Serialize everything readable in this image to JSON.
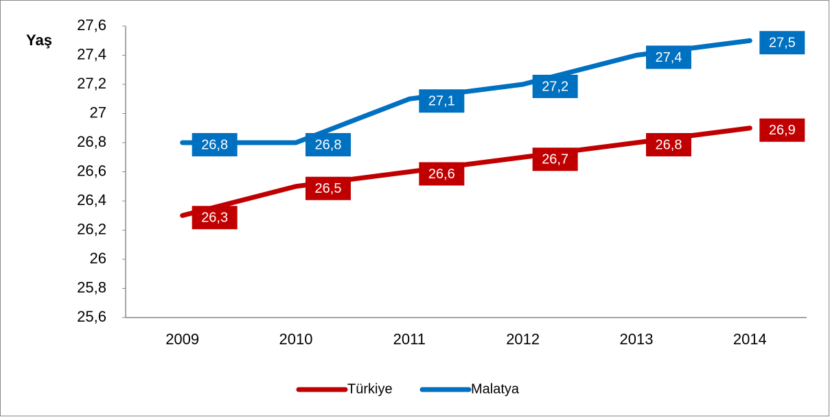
{
  "chart_data": {
    "type": "line",
    "y_label": "Yaş",
    "categories": [
      "2009",
      "2010",
      "2011",
      "2012",
      "2013",
      "2014"
    ],
    "series": [
      {
        "name": "Türkiye",
        "color": "#c00000",
        "values": [
          26.3,
          26.5,
          26.6,
          26.7,
          26.8,
          26.9
        ],
        "value_labels": [
          "26,3",
          "26,5",
          "26,6",
          "26,7",
          "26,8",
          "26,9"
        ]
      },
      {
        "name": "Malatya",
        "color": "#0070c0",
        "values": [
          26.8,
          26.8,
          27.1,
          27.2,
          27.4,
          27.5
        ],
        "value_labels": [
          "26,8",
          "26,8",
          "27,1",
          "27,2",
          "27,4",
          "27,5"
        ]
      }
    ],
    "ylim": [
      25.6,
      27.6
    ],
    "yticks": [
      {
        "value": 25.6,
        "label": "25,6"
      },
      {
        "value": 25.8,
        "label": "25,8"
      },
      26,
      {
        "value": 26.2,
        "label": "26,2"
      },
      {
        "value": 26.4,
        "label": "26,4"
      },
      {
        "value": 26.6,
        "label": "26,6"
      },
      {
        "value": 26.8,
        "label": "26,8"
      },
      27,
      {
        "value": 27.2,
        "label": "27,2"
      },
      {
        "value": 27.4,
        "label": "27,4"
      },
      {
        "value": 27.6,
        "label": "27,6"
      }
    ],
    "grid": false,
    "legend": "bottom"
  }
}
